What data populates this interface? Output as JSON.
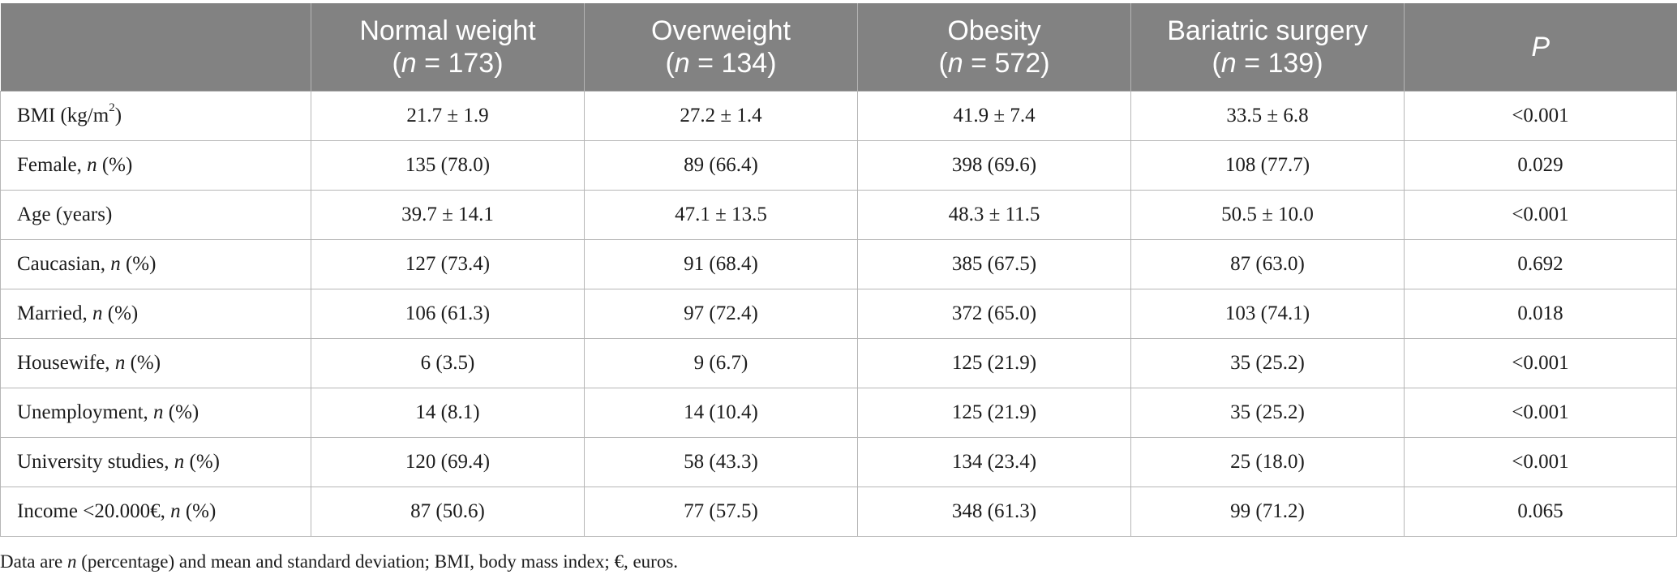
{
  "header": {
    "columns": [
      {
        "line1": "",
        "n_label": "",
        "n_value": ""
      },
      {
        "line1": "Normal weight",
        "n_label": "n",
        "n_value": " = 173)"
      },
      {
        "line1": "Overweight",
        "n_label": "n",
        "n_value": " = 134)"
      },
      {
        "line1": "Obesity",
        "n_label": "n",
        "n_value": " = 572)"
      },
      {
        "line1": "Bariatric surgery",
        "n_label": "n",
        "n_value": " = 139)"
      }
    ],
    "p_label": "P",
    "open_paren": "("
  },
  "rows": [
    {
      "label": "BMI (kg/m",
      "sup": "2",
      "label_after": ")",
      "italic": "",
      "suffix": "",
      "values": [
        "21.7 ± 1.9",
        "27.2 ± 1.4",
        "41.9 ± 7.4",
        "33.5 ± 6.8",
        "<0.001"
      ]
    },
    {
      "label": "Female, ",
      "sup": "",
      "label_after": "",
      "italic": "n",
      "suffix": " (%)",
      "values": [
        "135 (78.0)",
        "89 (66.4)",
        "398 (69.6)",
        "108 (77.7)",
        "0.029"
      ]
    },
    {
      "label": "Age (years)",
      "sup": "",
      "label_after": "",
      "italic": "",
      "suffix": "",
      "values": [
        "39.7 ± 14.1",
        "47.1 ± 13.5",
        "48.3 ± 11.5",
        "50.5 ± 10.0",
        "<0.001"
      ]
    },
    {
      "label": "Caucasian, ",
      "sup": "",
      "label_after": "",
      "italic": "n",
      "suffix": " (%)",
      "values": [
        "127 (73.4)",
        "91 (68.4)",
        "385 (67.5)",
        "87 (63.0)",
        "0.692"
      ]
    },
    {
      "label": "Married, ",
      "sup": "",
      "label_after": "",
      "italic": "n",
      "suffix": " (%)",
      "values": [
        "106 (61.3)",
        "97 (72.4)",
        "372 (65.0)",
        "103 (74.1)",
        "0.018"
      ]
    },
    {
      "label": "Housewife, ",
      "sup": "",
      "label_after": "",
      "italic": "n",
      "suffix": " (%)",
      "values": [
        "6 (3.5)",
        "9 (6.7)",
        "125 (21.9)",
        "35 (25.2)",
        "<0.001"
      ]
    },
    {
      "label": "Unemployment, ",
      "sup": "",
      "label_after": "",
      "italic": "n",
      "suffix": " (%)",
      "values": [
        "14 (8.1)",
        "14 (10.4)",
        "125 (21.9)",
        "35 (25.2)",
        "<0.001"
      ]
    },
    {
      "label": "University studies, ",
      "sup": "",
      "label_after": "",
      "italic": "n",
      "suffix": " (%)",
      "values": [
        "120 (69.4)",
        "58 (43.3)",
        "134 (23.4)",
        "25 (18.0)",
        "<0.001"
      ]
    },
    {
      "label": "Income <20.000€, ",
      "sup": "",
      "label_after": "",
      "italic": "n",
      "suffix": " (%)",
      "values": [
        "87 (50.6)",
        "77 (57.5)",
        "348 (61.3)",
        "99 (71.2)",
        "0.065"
      ]
    }
  ],
  "footnote": {
    "before": "Data are ",
    "italic": "n",
    "after": " (percentage) and mean and standard deviation; BMI, body mass index; €, euros."
  }
}
